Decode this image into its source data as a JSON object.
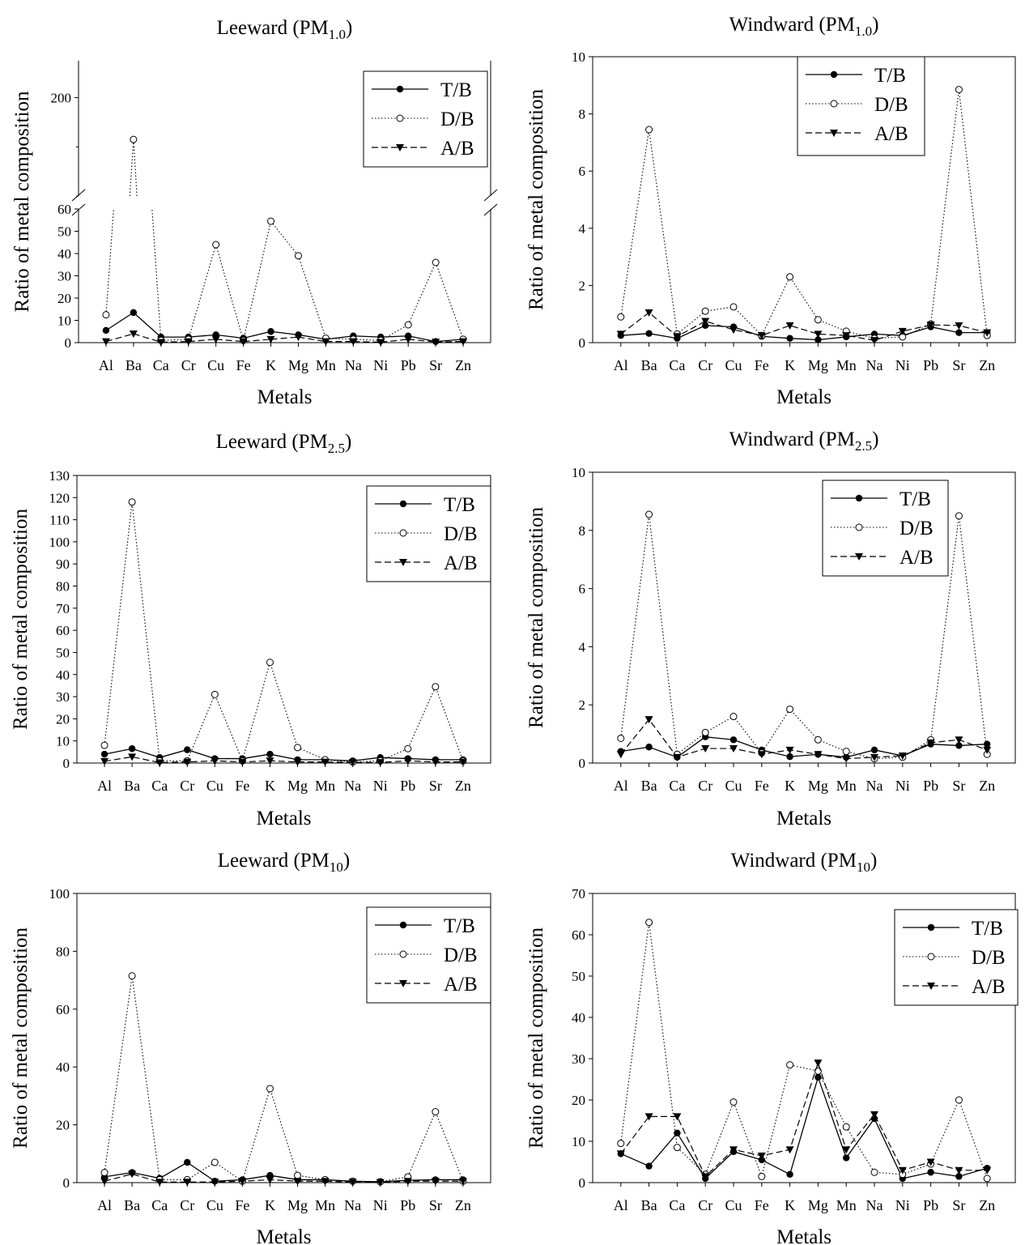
{
  "figure": {
    "legend_labels": [
      "T/B",
      "D/B",
      "A/B"
    ],
    "colors": {
      "line": "#000000",
      "background": "#ffffff"
    }
  },
  "chart_data": [
    {
      "type": "line",
      "title_main": "Leeward (PM",
      "title_sub": "1.0",
      "title_end": ")",
      "xlabel": "Metals",
      "ylabel": "Ratio of metal composition",
      "categories": [
        "Al",
        "Ba",
        "Ca",
        "Cr",
        "Cu",
        "Fe",
        "K",
        "Mg",
        "Mn",
        "Na",
        "Ni",
        "Pb",
        "Sr",
        "Zn"
      ],
      "broken_axis": true,
      "ylim_lower": [
        0,
        60
      ],
      "yticks_lower": [
        0,
        10,
        20,
        30,
        40,
        50,
        60
      ],
      "ylim_upper": [
        160,
        215
      ],
      "yticks_upper": [
        200
      ],
      "legend_position": "top-right",
      "series": [
        {
          "name": "T/B",
          "values": [
            5.5,
            13.5,
            2.5,
            2.5,
            3.5,
            2.0,
            5.0,
            3.5,
            1.5,
            3.0,
            2.5,
            3.0,
            0.5,
            1.5
          ]
        },
        {
          "name": "D/B",
          "values": [
            12.5,
            183,
            1.0,
            1.5,
            44,
            1.0,
            54.5,
            39,
            2.0,
            1.5,
            1.0,
            8.0,
            36,
            1.5
          ]
        },
        {
          "name": "A/B",
          "values": [
            0.5,
            4.0,
            0.2,
            0.5,
            1.5,
            0.5,
            1.5,
            2.5,
            0.5,
            0.5,
            0.2,
            1.5,
            0.3,
            0.5
          ]
        }
      ]
    },
    {
      "type": "line",
      "title_main": "Windward (PM",
      "title_sub": "1.0",
      "title_end": ")",
      "xlabel": "Metals",
      "ylabel": "Ratio of metal composition",
      "categories": [
        "Al",
        "Ba",
        "Ca",
        "Cr",
        "Cu",
        "Fe",
        "K",
        "Mg",
        "Mn",
        "Na",
        "Ni",
        "Pb",
        "Sr",
        "Zn"
      ],
      "ylim": [
        0,
        10
      ],
      "yticks": [
        0,
        2,
        4,
        6,
        8,
        10
      ],
      "legend_position": "top-right",
      "series": [
        {
          "name": "T/B",
          "values": [
            0.25,
            0.32,
            0.15,
            0.6,
            0.55,
            0.22,
            0.15,
            0.1,
            0.2,
            0.3,
            0.25,
            0.55,
            0.35,
            0.35
          ]
        },
        {
          "name": "D/B",
          "values": [
            0.9,
            7.45,
            0.3,
            1.1,
            1.25,
            0.25,
            2.3,
            0.8,
            0.4,
            0.15,
            0.2,
            0.65,
            8.85,
            0.25
          ]
        },
        {
          "name": "A/B",
          "values": [
            0.3,
            1.05,
            0.22,
            0.75,
            0.45,
            0.25,
            0.6,
            0.3,
            0.25,
            0.08,
            0.4,
            0.62,
            0.6,
            0.35
          ]
        }
      ]
    },
    {
      "type": "line",
      "title_main": "Leeward (PM",
      "title_sub": "2.5",
      "title_end": ")",
      "xlabel": "Metals",
      "ylabel": "Ratio of metal composition",
      "categories": [
        "Al",
        "Ba",
        "Ca",
        "Cr",
        "Cu",
        "Fe",
        "K",
        "Mg",
        "Mn",
        "Na",
        "Ni",
        "Pb",
        "Sr",
        "Zn"
      ],
      "ylim": [
        0,
        130
      ],
      "yticks": [
        0,
        10,
        20,
        30,
        40,
        50,
        60,
        70,
        80,
        90,
        100,
        110,
        120,
        130
      ],
      "legend_position": "top-right",
      "series": [
        {
          "name": "T/B",
          "values": [
            4.0,
            6.5,
            2.5,
            6.0,
            2.0,
            2.0,
            4.0,
            1.5,
            1.5,
            1.0,
            2.5,
            2.0,
            1.5,
            1.5
          ]
        },
        {
          "name": "D/B",
          "values": [
            8.0,
            118,
            1.0,
            1.0,
            31,
            1.0,
            45.5,
            7.0,
            1.5,
            0.5,
            1.0,
            6.5,
            34.5,
            1.0
          ]
        },
        {
          "name": "A/B",
          "values": [
            0.8,
            2.8,
            0.2,
            0.5,
            1.0,
            0.5,
            1.0,
            0.5,
            0.5,
            0.3,
            0.3,
            1.0,
            0.5,
            0.5
          ]
        }
      ]
    },
    {
      "type": "line",
      "title_main": "Windward (PM",
      "title_sub": "2.5",
      "title_end": ")",
      "xlabel": "Metals",
      "ylabel": "Ratio of metal composition",
      "categories": [
        "Al",
        "Ba",
        "Ca",
        "Cr",
        "Cu",
        "Fe",
        "K",
        "Mg",
        "Mn",
        "Na",
        "Ni",
        "Pb",
        "Sr",
        "Zn"
      ],
      "ylim": [
        0,
        10
      ],
      "yticks": [
        0,
        2,
        4,
        6,
        8,
        10
      ],
      "legend_position": "top-right",
      "series": [
        {
          "name": "T/B",
          "values": [
            0.4,
            0.55,
            0.2,
            0.9,
            0.8,
            0.45,
            0.22,
            0.3,
            0.2,
            0.45,
            0.25,
            0.65,
            0.6,
            0.65
          ]
        },
        {
          "name": "D/B",
          "values": [
            0.85,
            8.55,
            0.3,
            1.05,
            1.6,
            0.35,
            1.85,
            0.8,
            0.4,
            0.15,
            0.2,
            0.8,
            8.5,
            0.3
          ]
        },
        {
          "name": "A/B",
          "values": [
            0.3,
            1.5,
            0.2,
            0.5,
            0.5,
            0.3,
            0.45,
            0.3,
            0.15,
            0.2,
            0.25,
            0.7,
            0.8,
            0.45
          ]
        }
      ]
    },
    {
      "type": "line",
      "title_main": "Leeward (PM",
      "title_sub": "10",
      "title_end": ")",
      "xlabel": "Metals",
      "ylabel": "Ratio of metal composition",
      "categories": [
        "Al",
        "Ba",
        "Ca",
        "Cr",
        "Cu",
        "Fe",
        "K",
        "Mg",
        "Mn",
        "Na",
        "Ni",
        "Pb",
        "Sr",
        "Zn"
      ],
      "ylim": [
        0,
        100
      ],
      "yticks": [
        0,
        20,
        40,
        60,
        80,
        100
      ],
      "legend_position": "top-right",
      "series": [
        {
          "name": "T/B",
          "values": [
            2.0,
            3.5,
            1.5,
            7.0,
            0.5,
            1.0,
            2.5,
            1.0,
            1.0,
            0.5,
            0.3,
            0.8,
            1.0,
            1.0
          ]
        },
        {
          "name": "D/B",
          "values": [
            3.5,
            71.5,
            1.0,
            1.0,
            7.0,
            0.5,
            32.5,
            2.5,
            1.0,
            0.5,
            0.3,
            2.0,
            24.5,
            0.5
          ]
        },
        {
          "name": "A/B",
          "values": [
            0.5,
            3.0,
            0.2,
            0.2,
            0.2,
            0.5,
            1.0,
            0.5,
            0.5,
            0.2,
            0.1,
            0.5,
            0.5,
            0.5
          ]
        }
      ]
    },
    {
      "type": "line",
      "title_main": "Windward (PM",
      "title_sub": "10",
      "title_end": ")",
      "xlabel": "Metals",
      "ylabel": "Ratio of metal composition",
      "categories": [
        "Al",
        "Ba",
        "Ca",
        "Cr",
        "Cu",
        "Fe",
        "K",
        "Mg",
        "Mn",
        "Na",
        "Ni",
        "Pb",
        "Sr",
        "Zn"
      ],
      "ylim": [
        0,
        70
      ],
      "yticks": [
        0,
        10,
        20,
        30,
        40,
        50,
        60,
        70
      ],
      "legend_position": "top-right",
      "series": [
        {
          "name": "T/B",
          "values": [
            7.0,
            4.0,
            12.0,
            1.0,
            7.5,
            5.5,
            2.0,
            25.5,
            6.0,
            15.5,
            1.0,
            2.5,
            1.5,
            3.5
          ]
        },
        {
          "name": "D/B",
          "values": [
            9.5,
            63,
            8.5,
            2.0,
            19.5,
            1.5,
            28.5,
            27,
            13.5,
            2.5,
            2.0,
            4.5,
            20,
            1.0
          ]
        },
        {
          "name": "A/B",
          "values": [
            7.0,
            16,
            16,
            1.5,
            8.0,
            6.5,
            8.0,
            29,
            8.0,
            16.5,
            3.0,
            5.0,
            3.0,
            3.0
          ]
        }
      ]
    }
  ]
}
